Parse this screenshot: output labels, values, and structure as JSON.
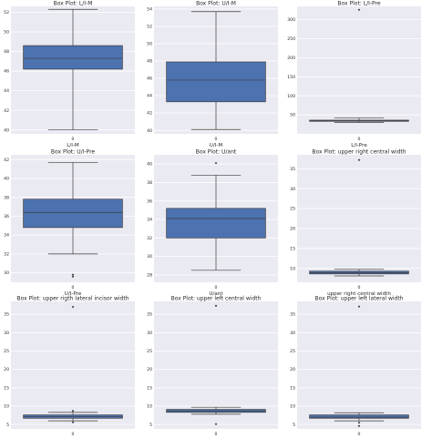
{
  "chart_data": [
    {
      "type": "box",
      "title": "Box Plot: L/I-M",
      "xlabel": "L/I-M",
      "categories": [
        "0"
      ],
      "ylim": [
        39.6,
        52.6
      ],
      "yticks": [
        40,
        42,
        44,
        46,
        48,
        50,
        52
      ],
      "box": {
        "whislo": 40.0,
        "q1": 46.2,
        "med": 47.3,
        "q3": 48.6,
        "whishi": 52.3
      },
      "fliers": []
    },
    {
      "type": "box",
      "title": "Box Plot: U/I-M",
      "xlabel": "U/I-M",
      "categories": [
        "0"
      ],
      "ylim": [
        39.6,
        54.3
      ],
      "yticks": [
        40,
        42,
        44,
        46,
        48,
        50,
        52,
        54
      ],
      "box": {
        "whislo": 40.1,
        "q1": 43.3,
        "med": 45.8,
        "q3": 47.9,
        "whishi": 53.7
      },
      "fliers": []
    },
    {
      "type": "box",
      "title": "Box Plot: L/I-Pre",
      "xlabel": "L/I-Pre",
      "categories": [
        "0"
      ],
      "ylim": [
        0,
        335
      ],
      "yticks": [
        50,
        100,
        150,
        200,
        250,
        300
      ],
      "box": {
        "whislo": 30,
        "q1": 33,
        "med": 34,
        "q3": 36,
        "whishi": 42
      },
      "fliers": [
        326
      ]
    },
    {
      "type": "box",
      "title": "Box Plot: U/I-Pre",
      "xlabel": "U/I-Pre",
      "categories": [
        "0"
      ],
      "ylim": [
        29.0,
        42.5
      ],
      "yticks": [
        30,
        32,
        34,
        36,
        38,
        40,
        42
      ],
      "box": {
        "whislo": 32.0,
        "q1": 34.8,
        "med": 36.4,
        "q3": 37.8,
        "whishi": 41.7
      },
      "fliers": [
        29.6,
        29.8
      ]
    },
    {
      "type": "box",
      "title": "Box Plot: U/ant",
      "xlabel": "U/ant",
      "categories": [
        "0"
      ],
      "ylim": [
        27.2,
        41.0
      ],
      "yticks": [
        28,
        30,
        32,
        34,
        36,
        38,
        40
      ],
      "box": {
        "whislo": 28.5,
        "q1": 32.0,
        "med": 34.1,
        "q3": 35.2,
        "whishi": 38.8
      },
      "fliers": [
        40.1
      ]
    },
    {
      "type": "box",
      "title": "Box Plot: upper right central width",
      "xlabel": "upper right central width",
      "categories": [
        "0"
      ],
      "ylim": [
        6.5,
        38.5
      ],
      "yticks": [
        10,
        15,
        20,
        25,
        30,
        35
      ],
      "box": {
        "whislo": 8.1,
        "q1": 8.6,
        "med": 8.9,
        "q3": 9.3,
        "whishi": 9.8
      },
      "fliers": [
        37.2
      ]
    },
    {
      "type": "box",
      "title": "Box Plot: upper rigth lateral incisor width",
      "xlabel": "upper rigth lateral incisor width",
      "categories": [
        "0"
      ],
      "ylim": [
        3.8,
        38.5
      ],
      "yticks": [
        5,
        10,
        15,
        20,
        25,
        30,
        35
      ],
      "box": {
        "whislo": 6.0,
        "q1": 6.7,
        "med": 7.1,
        "q3": 7.6,
        "whishi": 8.3
      },
      "fliers": [
        5.6,
        8.7,
        37.0
      ]
    },
    {
      "type": "box",
      "title": "Box Plot: upper left central width",
      "xlabel": "upper left central width",
      "categories": [
        "0"
      ],
      "ylim": [
        3.8,
        38.5
      ],
      "yticks": [
        5,
        10,
        15,
        20,
        25,
        30,
        35
      ],
      "box": {
        "whislo": 7.8,
        "q1": 8.3,
        "med": 8.7,
        "q3": 9.1,
        "whishi": 9.7
      },
      "fliers": [
        5.1,
        37.3
      ]
    },
    {
      "type": "box",
      "title": "Box Plot: upper left lateral width",
      "xlabel": "upper left lateral width",
      "categories": [
        "0"
      ],
      "ylim": [
        3.8,
        38.5
      ],
      "yticks": [
        5,
        10,
        15,
        20,
        25,
        30,
        35
      ],
      "box": {
        "whislo": 6.0,
        "q1": 6.7,
        "med": 7.0,
        "q3": 7.6,
        "whishi": 8.2
      },
      "fliers": [
        4.6,
        5.5,
        37.1
      ]
    }
  ],
  "colors": {
    "figure_bg": "#ffffff",
    "axes_bg": "#eaeaf2",
    "grid": "#ffffff",
    "box_fill": "#4c72b0",
    "line": "#3d3d3d",
    "text": "#262626"
  }
}
